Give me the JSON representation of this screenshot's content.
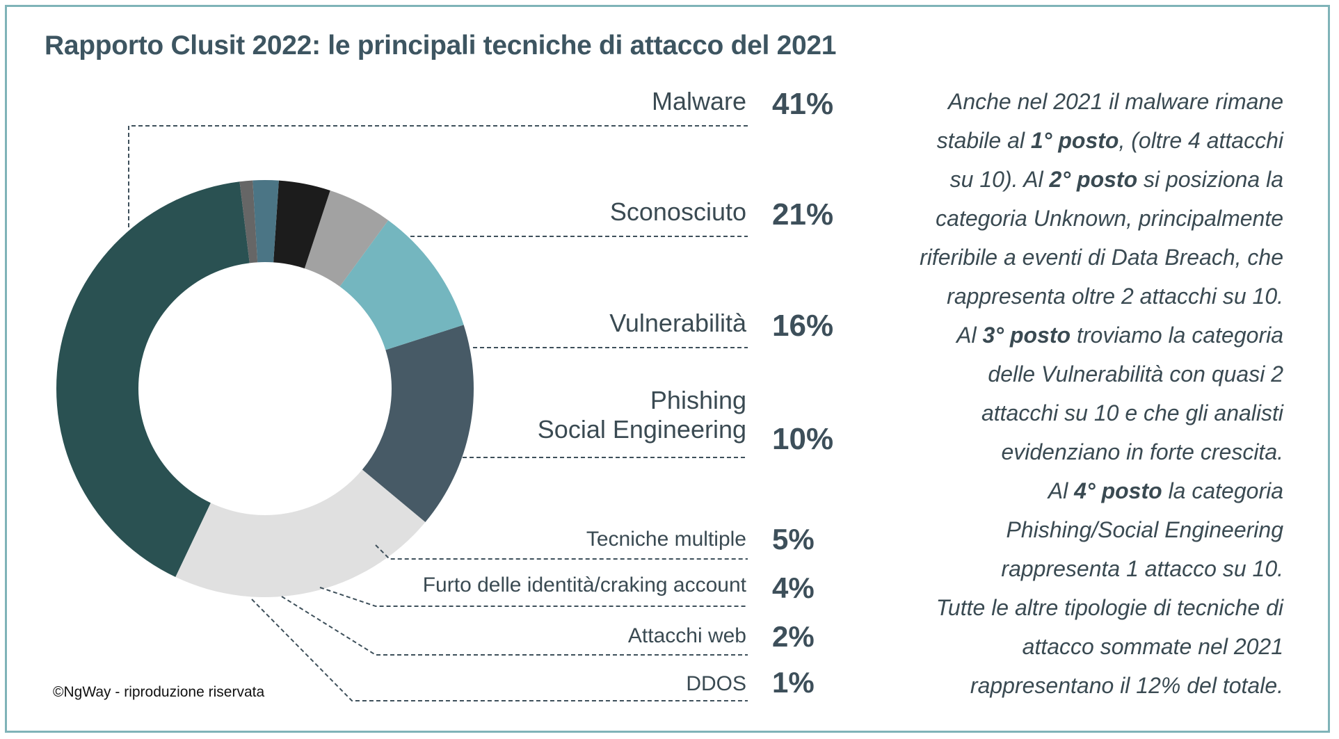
{
  "title": "Rapporto Clusit 2022: le principali tecniche di attacco del 2021",
  "chart_data": {
    "type": "pie",
    "variant": "donut",
    "title": "Rapporto Clusit 2022: le principali tecniche di attacco del 2021",
    "legend": "right, leader lines",
    "slices": [
      {
        "label": "Malware",
        "display": "Malware",
        "value": 41,
        "pct_label": "41%",
        "color": "#2a5152"
      },
      {
        "label": "Sconosciuto",
        "display": "Sconosciuto",
        "value": 21,
        "pct_label": "21%",
        "color": "#e0e0e0"
      },
      {
        "label": "Vulnerabilità",
        "display": "Vulnerabilità",
        "value": 16,
        "pct_label": "16%",
        "color": "#475a66"
      },
      {
        "label": "Phishing Social Engineering",
        "display": "Phishing\nSocial Engineering",
        "value": 10,
        "pct_label": "10%",
        "color": "#74b6bf"
      },
      {
        "label": "Tecniche multiple",
        "display": "Tecniche multiple",
        "value": 5,
        "pct_label": "5%",
        "color": "#a2a2a2"
      },
      {
        "label": "Furto delle identità/craking account",
        "display": "Furto delle identità/craking account",
        "value": 4,
        "pct_label": "4%",
        "color": "#1c1c1c"
      },
      {
        "label": "Attacchi web",
        "display": "Attacchi web",
        "value": 2,
        "pct_label": "2%",
        "color": "#4b7585"
      },
      {
        "label": "DDOS",
        "display": "DDOS",
        "value": 1,
        "pct_label": "1%",
        "color": "#666666"
      }
    ]
  },
  "commentary": [
    [
      {
        "t": "Anche nel 2021 il malware rimane"
      }
    ],
    [
      {
        "t": "stabile al "
      },
      {
        "t": "1° posto",
        "b": true
      },
      {
        "t": ", (oltre 4 attacchi"
      }
    ],
    [
      {
        "t": "su 10). Al "
      },
      {
        "t": "2° posto",
        "b": true
      },
      {
        "t": " si posiziona la"
      }
    ],
    [
      {
        "t": "categoria Unknown, principalmente"
      }
    ],
    [
      {
        "t": "riferibile a eventi di Data Breach, che"
      }
    ],
    [
      {
        "t": "rappresenta oltre 2 attacchi su 10."
      }
    ],
    [
      {
        "t": "Al "
      },
      {
        "t": "3° posto",
        "b": true
      },
      {
        "t": " troviamo la categoria"
      }
    ],
    [
      {
        "t": "delle Vulnerabilità con quasi 2"
      }
    ],
    [
      {
        "t": "attacchi su 10 e che gli analisti"
      }
    ],
    [
      {
        "t": "evidenziano in forte crescita."
      }
    ],
    [
      {
        "t": "Al "
      },
      {
        "t": "4° posto",
        "b": true
      },
      {
        "t": " la categoria"
      }
    ],
    [
      {
        "t": "Phishing/Social Engineering"
      }
    ],
    [
      {
        "t": "rappresenta 1 attacco su 10."
      }
    ],
    [
      {
        "t": "Tutte le altre tipologie di tecniche di"
      }
    ],
    [
      {
        "t": "attacco sommate nel 2021"
      }
    ],
    [
      {
        "t": "rappresentano il 12% del totale."
      }
    ]
  ],
  "copyright": "©NgWay - riproduzione riservata",
  "colors": {
    "frame": "#7fb3b8",
    "title": "#3d5561",
    "text": "#3a4a52",
    "leader": "#3d4f5a"
  }
}
